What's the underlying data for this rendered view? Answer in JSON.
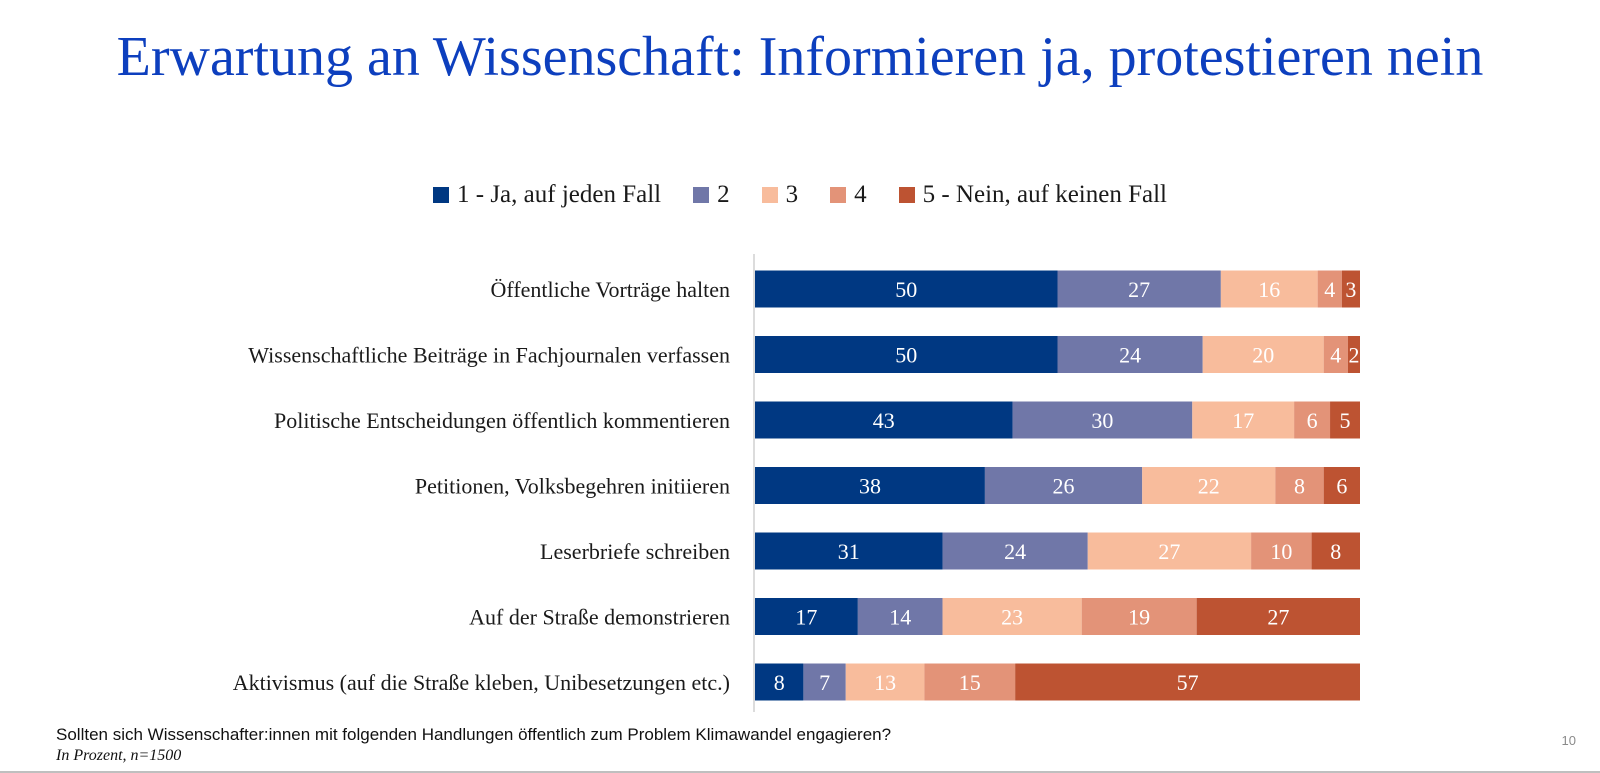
{
  "title": "Erwartung an Wissenschaft: Informieren ja, protestieren nein",
  "footer": {
    "question": "Sollten sich Wissenschafter:innen mit folgenden Handlungen öffentlich zum Problem Klimawandel engagieren?",
    "note": "In Prozent, n=1500"
  },
  "page_number": "10",
  "colors": {
    "title": "#0d3fbe",
    "s1": "#003882",
    "s2": "#7077a8",
    "s3": "#f8bc9c",
    "s4": "#e39378",
    "s5": "#bd5332"
  },
  "chart_data": {
    "type": "bar",
    "orientation": "horizontal",
    "stacked": true,
    "legend_position": "top",
    "xlim": [
      0,
      100
    ],
    "categories": [
      "Öffentliche Vorträge halten",
      "Wissenschaftliche Beiträge in Fachjournalen verfassen",
      "Politische Entscheidungen öffentlich kommentieren",
      "Petitionen, Volksbegehren initiieren",
      "Leserbriefe schreiben",
      "Auf der Straße demonstrieren",
      "Aktivismus (auf die Straße kleben, Unibesetzungen etc.)"
    ],
    "series": [
      {
        "name": "1 - Ja, auf jeden Fall",
        "color": "#003882",
        "values": [
          50,
          50,
          43,
          38,
          31,
          17,
          8
        ]
      },
      {
        "name": "2",
        "color": "#7077a8",
        "values": [
          27,
          24,
          30,
          26,
          24,
          14,
          7
        ]
      },
      {
        "name": "3",
        "color": "#f8bc9c",
        "values": [
          16,
          20,
          17,
          22,
          27,
          23,
          13
        ]
      },
      {
        "name": "4",
        "color": "#e39378",
        "values": [
          4,
          4,
          6,
          8,
          10,
          19,
          15
        ]
      },
      {
        "name": "5 - Nein, auf keinen Fall",
        "color": "#bd5332",
        "values": [
          3,
          2,
          5,
          6,
          8,
          27,
          57
        ]
      }
    ]
  }
}
